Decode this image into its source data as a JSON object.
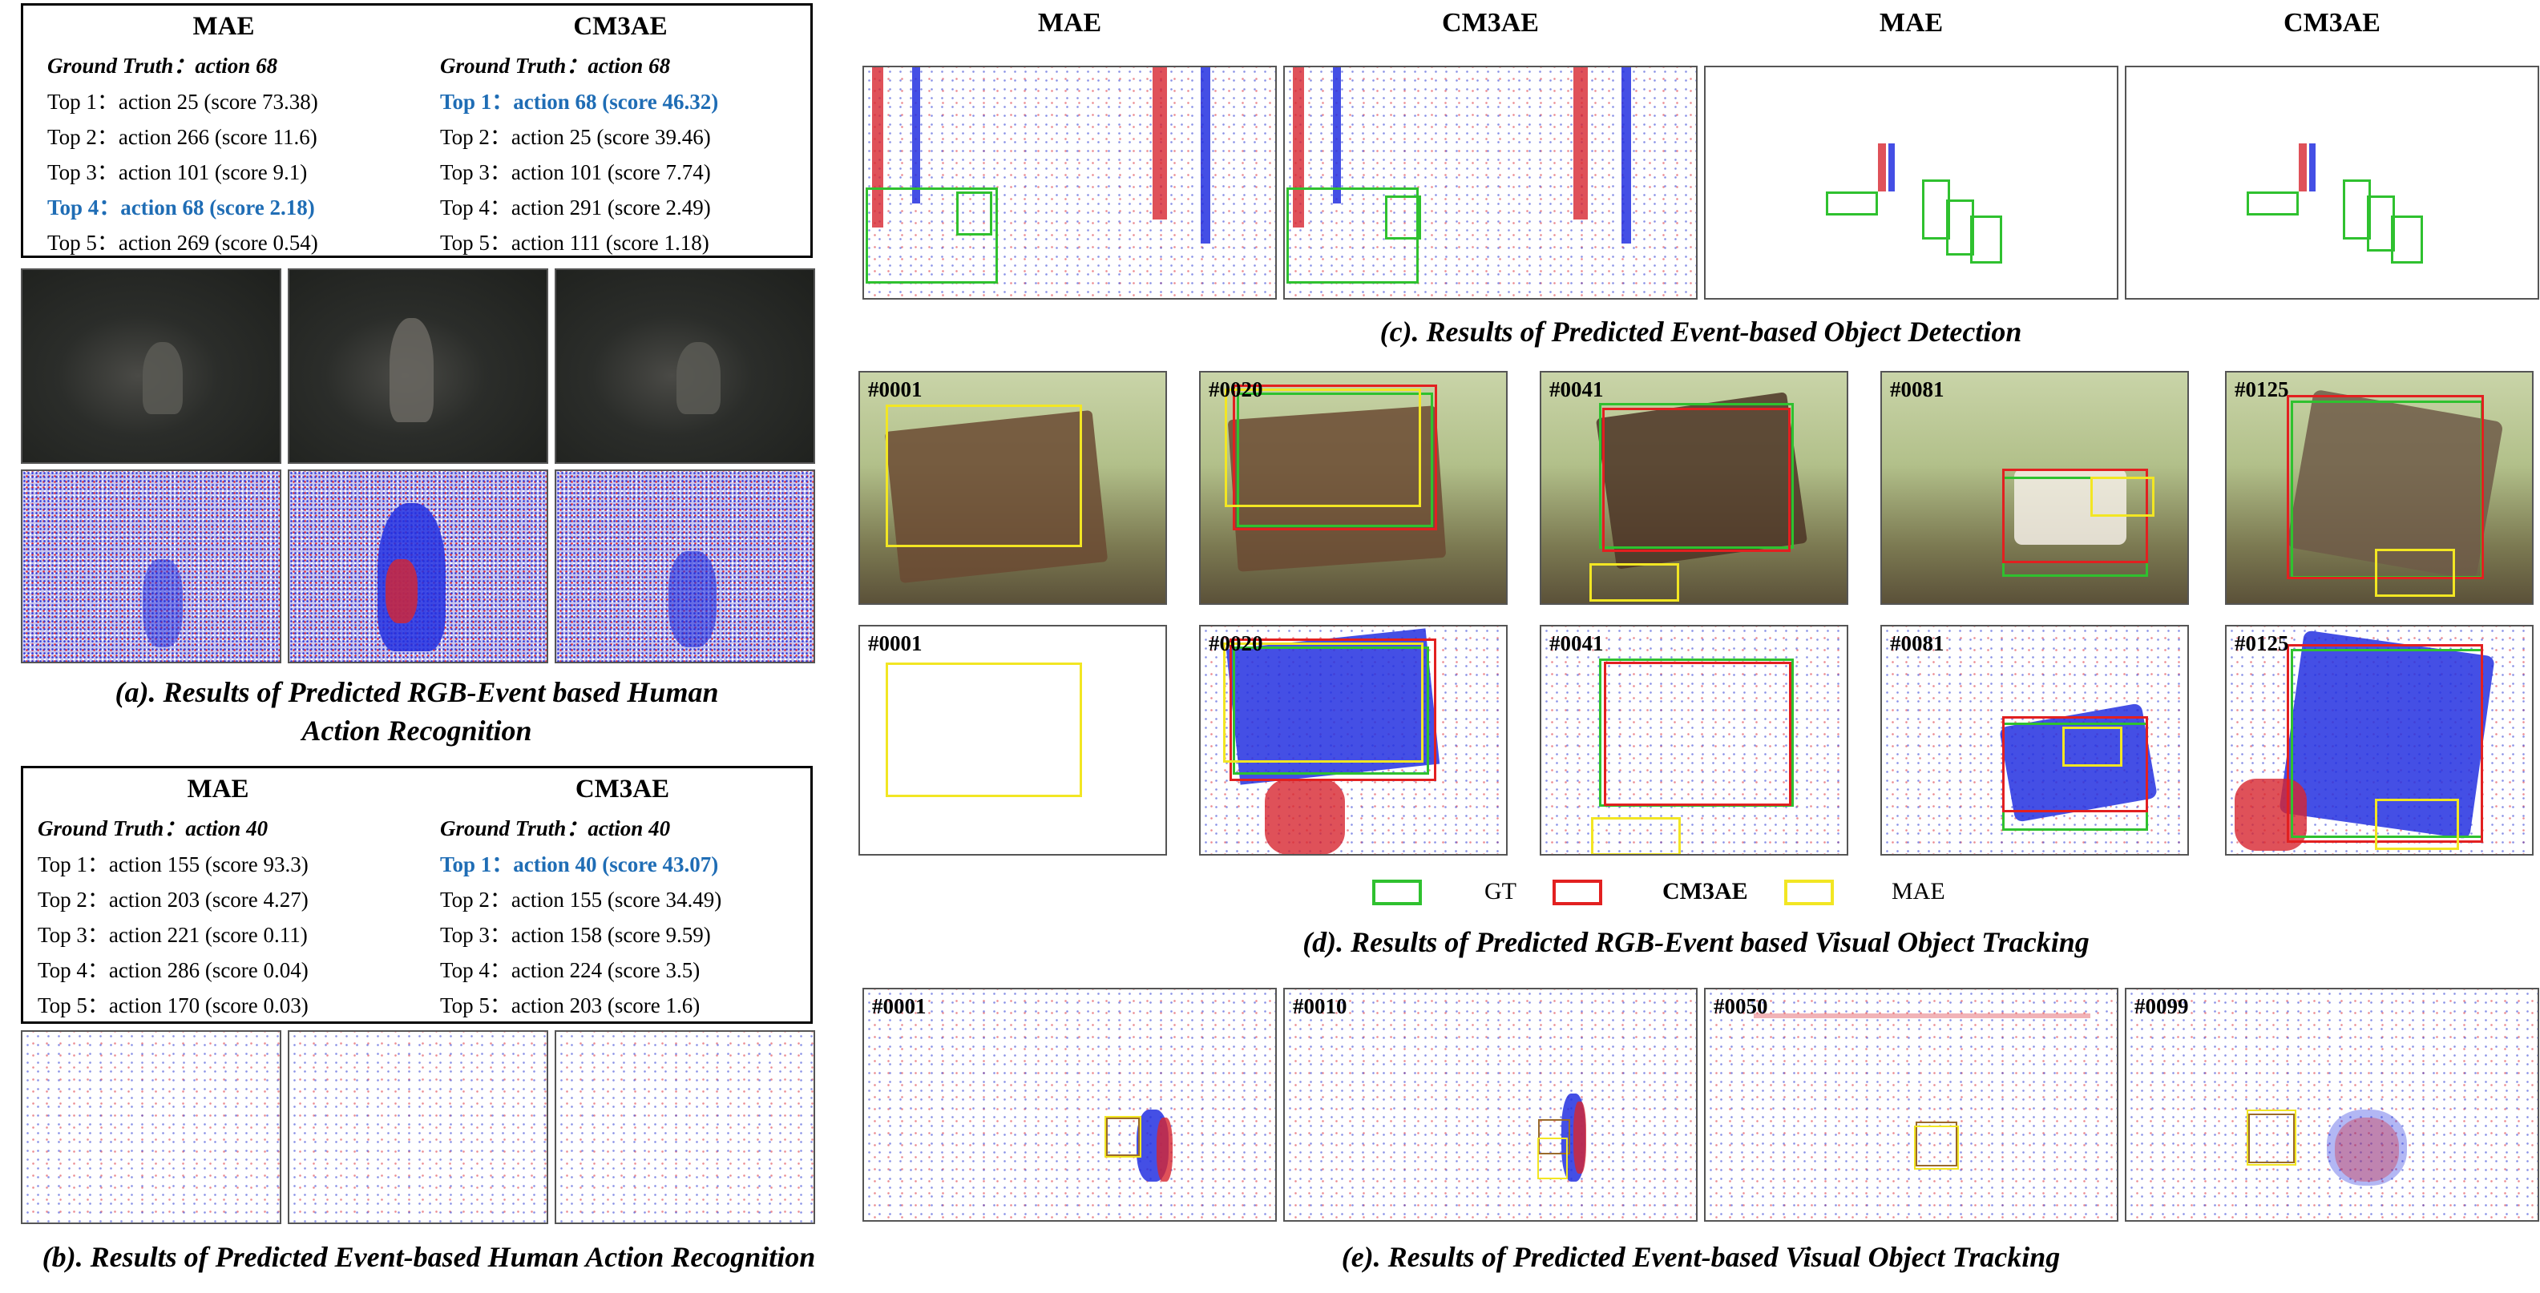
{
  "panel_a": {
    "mae": {
      "title": "MAE",
      "ground_truth": "Ground Truth：action 68",
      "rows": [
        "Top 1：action 25 (score 73.38)",
        "Top 2：action 266 (score 11.6)",
        "Top 3：action 101 (score 9.1)",
        "Top 4：action 68 (score 2.18)",
        "Top 5：action 269 (score 0.54)"
      ]
    },
    "cm3ae": {
      "title": "CM3AE",
      "ground_truth": "Ground Truth：action 68",
      "rows": [
        "Top 1：action 68 (score 46.32)",
        "Top 2：action 25 (score 39.46)",
        "Top 3：action 101 (score 7.74)",
        "Top 4：action 291 (score 2.49)",
        "Top 5：action 111 (score 1.18)"
      ]
    },
    "caption_line1": "(a). Results of Predicted RGB-Event based Human",
    "caption_line2": "Action Recognition"
  },
  "panel_b": {
    "mae": {
      "title": "MAE",
      "ground_truth": "Ground Truth：action 40",
      "rows": [
        "Top 1：action 155 (score 93.3)",
        "Top 2：action 203 (score 4.27)",
        "Top 3：action 221 (score 0.11)",
        "Top 4：action 286 (score 0.04)",
        "Top 5：action 170 (score 0.03)"
      ]
    },
    "cm3ae": {
      "title": "CM3AE",
      "ground_truth": "Ground Truth：action 40",
      "rows": [
        "Top 1：action 40 (score 43.07)",
        "Top 2：action 155 (score 34.49)",
        "Top 3：action 158 (score 9.59)",
        "Top 4：action 224 (score 3.5)",
        "Top 5：action 203 (score 1.6)"
      ]
    },
    "caption": "(b). Results of Predicted Event-based Human Action Recognition"
  },
  "panel_c": {
    "column_titles": [
      "MAE",
      "CM3AE",
      "MAE",
      "CM3AE"
    ],
    "caption": "(c). Results of Predicted Event-based Object Detection"
  },
  "panel_d": {
    "frames": [
      "#0001",
      "#0020",
      "#0041",
      "#0081",
      "#0125"
    ],
    "legend": {
      "gt": "GT",
      "cm3ae": "CM3AE",
      "mae": "MAE"
    },
    "caption": "(d). Results of Predicted RGB-Event based Visual Object Tracking",
    "colors": {
      "gt": "#2fc12f",
      "cm3ae": "#e22020",
      "mae": "#f2e623"
    }
  },
  "panel_e": {
    "frames": [
      "#0001",
      "#0010",
      "#0050",
      "#0099"
    ],
    "caption": "(e). Results of Predicted Event-based Visual Object Tracking"
  },
  "highlight_color": "#1f6db5"
}
